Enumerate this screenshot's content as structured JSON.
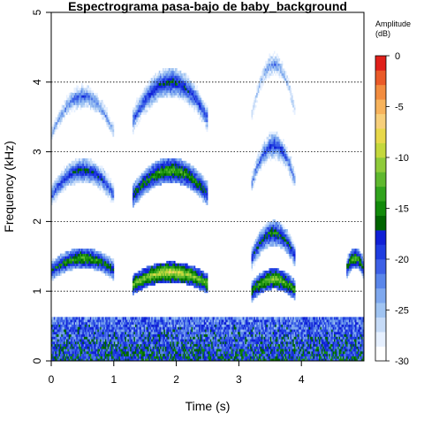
{
  "chart_data": {
    "type": "heatmap",
    "title": "Espectrograma pasa-bajo de baby_background",
    "xlabel": "Time (s)",
    "ylabel": "Frequency (kHz)",
    "xlim": [
      0,
      5
    ],
    "ylim": [
      0,
      5
    ],
    "x_ticks": [
      "0",
      "1",
      "2",
      "3",
      "4"
    ],
    "y_ticks": [
      "0",
      "1",
      "2",
      "3",
      "4",
      "5"
    ],
    "grid_lines_y": [
      1,
      2,
      3,
      4
    ],
    "colorbar": {
      "title_line1": "Amplitude",
      "title_line2": "(dB)",
      "range": [
        -30,
        0
      ],
      "ticks": [
        "0",
        "-5",
        "-10",
        "-15",
        "-20",
        "-25",
        "-30"
      ],
      "colors": [
        "#ffffff",
        "#e6f0ff",
        "#c6dbf7",
        "#a0c4f2",
        "#7fa8ee",
        "#5a86ea",
        "#3d60e6",
        "#1f3de0",
        "#1020d6",
        "#006400",
        "#128a0a",
        "#31a31d",
        "#5fb82e",
        "#8fcb3a",
        "#c4d83c",
        "#e8d84a",
        "#f7cf7a",
        "#f7b35c",
        "#f28c3f",
        "#ea5a28",
        "#e0201a"
      ]
    },
    "harmonic_bands": [
      {
        "t_start": 0.0,
        "t_end": 1.0,
        "freqs_khz": [
          1.4,
          2.6,
          3.6
        ],
        "amplitude_db": -12
      },
      {
        "t_start": 1.3,
        "t_end": 2.5,
        "freqs_khz": [
          1.2,
          2.6,
          3.8
        ],
        "amplitude_db": -8
      },
      {
        "t_start": 3.2,
        "t_end": 3.9,
        "freqs_khz": [
          1.1,
          1.7,
          2.9,
          4.0
        ],
        "amplitude_db": -10
      },
      {
        "t_start": 4.7,
        "t_end": 5.0,
        "freqs_khz": [
          1.4
        ],
        "amplitude_db": -12
      }
    ]
  }
}
